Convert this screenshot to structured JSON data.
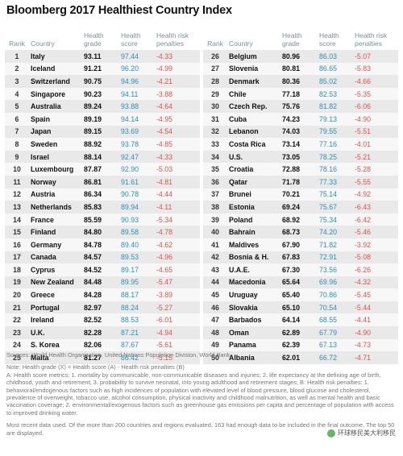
{
  "chart_data": {
    "type": "table",
    "title": "Bloomberg 2017 Healthiest Country Index",
    "columns": [
      "Rank",
      "Country",
      "Health grade",
      "Health score",
      "Health risk penalties"
    ],
    "rows": [
      {
        "rank": "1",
        "country": "Italy",
        "grade": "93.11",
        "score": "97.44",
        "penalty": "-4.33"
      },
      {
        "rank": "2",
        "country": "Iceland",
        "grade": "91.21",
        "score": "96.20",
        "penalty": "-4.99"
      },
      {
        "rank": "3",
        "country": "Switzerland",
        "grade": "90.75",
        "score": "94.96",
        "penalty": "-4.21"
      },
      {
        "rank": "4",
        "country": "Singapore",
        "grade": "90.23",
        "score": "94.11",
        "penalty": "-3.88"
      },
      {
        "rank": "5",
        "country": "Australia",
        "grade": "89.24",
        "score": "93.88",
        "penalty": "-4.64"
      },
      {
        "rank": "6",
        "country": "Spain",
        "grade": "89.19",
        "score": "94.14",
        "penalty": "-4.95"
      },
      {
        "rank": "7",
        "country": "Japan",
        "grade": "89.15",
        "score": "93.69",
        "penalty": "-4.54"
      },
      {
        "rank": "8",
        "country": "Sweden",
        "grade": "88.92",
        "score": "93.78",
        "penalty": "-4.85"
      },
      {
        "rank": "9",
        "country": "Israel",
        "grade": "88.14",
        "score": "92.47",
        "penalty": "-4.33"
      },
      {
        "rank": "10",
        "country": "Luxembourg",
        "grade": "87.87",
        "score": "92.90",
        "penalty": "-5.03"
      },
      {
        "rank": "11",
        "country": "Norway",
        "grade": "86.81",
        "score": "91.61",
        "penalty": "-4.81"
      },
      {
        "rank": "12",
        "country": "Austria",
        "grade": "86.34",
        "score": "90.78",
        "penalty": "-4.44"
      },
      {
        "rank": "13",
        "country": "Netherlands",
        "grade": "85.83",
        "score": "89.94",
        "penalty": "-4.11"
      },
      {
        "rank": "14",
        "country": "France",
        "grade": "85.59",
        "score": "90.93",
        "penalty": "-5.34"
      },
      {
        "rank": "15",
        "country": "Finland",
        "grade": "84.80",
        "score": "89.58",
        "penalty": "-4.78"
      },
      {
        "rank": "16",
        "country": "Germany",
        "grade": "84.78",
        "score": "89.40",
        "penalty": "-4.62"
      },
      {
        "rank": "17",
        "country": "Canada",
        "grade": "84.57",
        "score": "89.53",
        "penalty": "-4.96"
      },
      {
        "rank": "18",
        "country": "Cyprus",
        "grade": "84.52",
        "score": "89.17",
        "penalty": "-4.65"
      },
      {
        "rank": "19",
        "country": "New Zealand",
        "grade": "84.48",
        "score": "89.95",
        "penalty": "-5.47"
      },
      {
        "rank": "20",
        "country": "Greece",
        "grade": "84.28",
        "score": "88.17",
        "penalty": "-3.89"
      },
      {
        "rank": "21",
        "country": "Portugal",
        "grade": "82.97",
        "score": "88.24",
        "penalty": "-5.27"
      },
      {
        "rank": "22",
        "country": "Ireland",
        "grade": "82.52",
        "score": "88.53",
        "penalty": "-6.01"
      },
      {
        "rank": "23",
        "country": "U.K.",
        "grade": "82.28",
        "score": "87.21",
        "penalty": "-4.94"
      },
      {
        "rank": "24",
        "country": "S. Korea",
        "grade": "82.06",
        "score": "87.67",
        "penalty": "-5.61"
      },
      {
        "rank": "25",
        "country": "Malta",
        "grade": "81.27",
        "score": "86.42",
        "penalty": "-5.15"
      },
      {
        "rank": "26",
        "country": "Belgium",
        "grade": "80.96",
        "score": "86.03",
        "penalty": "-5.07"
      },
      {
        "rank": "27",
        "country": "Slovenia",
        "grade": "80.81",
        "score": "86.65",
        "penalty": "-5.83"
      },
      {
        "rank": "28",
        "country": "Denmark",
        "grade": "80.36",
        "score": "85.02",
        "penalty": "-4.66"
      },
      {
        "rank": "29",
        "country": "Chile",
        "grade": "77.18",
        "score": "82.53",
        "penalty": "-5.35"
      },
      {
        "rank": "30",
        "country": "Czech Rep.",
        "grade": "75.76",
        "score": "81.82",
        "penalty": "-6.06"
      },
      {
        "rank": "31",
        "country": "Cuba",
        "grade": "74.23",
        "score": "79.13",
        "penalty": "-4.90"
      },
      {
        "rank": "32",
        "country": "Lebanon",
        "grade": "74.03",
        "score": "79.55",
        "penalty": "-5.51"
      },
      {
        "rank": "33",
        "country": "Costa Rica",
        "grade": "73.14",
        "score": "77.16",
        "penalty": "-4.01"
      },
      {
        "rank": "34",
        "country": "U.S.",
        "grade": "73.05",
        "score": "78.25",
        "penalty": "-5.21"
      },
      {
        "rank": "35",
        "country": "Croatia",
        "grade": "72.88",
        "score": "78.16",
        "penalty": "-5.28"
      },
      {
        "rank": "36",
        "country": "Qatar",
        "grade": "71.78",
        "score": "77.33",
        "penalty": "-5.55"
      },
      {
        "rank": "37",
        "country": "Brunei",
        "grade": "70.21",
        "score": "75.14",
        "penalty": "-4.92"
      },
      {
        "rank": "38",
        "country": "Estonia",
        "grade": "69.24",
        "score": "75.67",
        "penalty": "-6.43"
      },
      {
        "rank": "39",
        "country": "Poland",
        "grade": "68.92",
        "score": "75.34",
        "penalty": "-6.42"
      },
      {
        "rank": "40",
        "country": "Bahrain",
        "grade": "68.73",
        "score": "74.20",
        "penalty": "-5.46"
      },
      {
        "rank": "41",
        "country": "Maldives",
        "grade": "67.90",
        "score": "71.82",
        "penalty": "-3.92"
      },
      {
        "rank": "42",
        "country": "Bosnia & H.",
        "grade": "67.83",
        "score": "72.91",
        "penalty": "-5.08"
      },
      {
        "rank": "43",
        "country": "U.A.E.",
        "grade": "67.30",
        "score": "73.56",
        "penalty": "-6.26"
      },
      {
        "rank": "44",
        "country": "Macedonia",
        "grade": "65.64",
        "score": "69.96",
        "penalty": "-4.32"
      },
      {
        "rank": "45",
        "country": "Uruguay",
        "grade": "65.40",
        "score": "70.86",
        "penalty": "-5.45"
      },
      {
        "rank": "46",
        "country": "Slovakia",
        "grade": "65.10",
        "score": "70.54",
        "penalty": "-5.44"
      },
      {
        "rank": "47",
        "country": "Barbados",
        "grade": "64.14",
        "score": "68.55",
        "penalty": "-4.41"
      },
      {
        "rank": "48",
        "country": "Oman",
        "grade": "62.89",
        "score": "67.79",
        "penalty": "-4.90"
      },
      {
        "rank": "49",
        "country": "Panama",
        "grade": "62.39",
        "score": "67.13",
        "penalty": "-4.73"
      },
      {
        "rank": "50",
        "country": "Albania",
        "grade": "62.01",
        "score": "66.72",
        "penalty": "-4.71"
      }
    ]
  },
  "footer": {
    "sources": "Sources: World Health Organization, United Nations Population Division, World Bank",
    "formula": "Note: Health grade (X) = Health score (A) - Health risk penalties (B)",
    "definition_a": "A: Health score metrics: 1. mortality by communicable, non-communicable diseases and injuries; 2. life expectancy at the defining age of birth, childhood, youth and retirement; 3. probability to survive neonatal, into young adulthood and retirement stages; B: Health risk penalties: 1. behavioral/endogenous factors such as high incidences of population with elevated level of blood pressure, blood glucose and cholesterol, prevalence of overweight, tobacco use, alcohol consumption, physical inactivity and childhood malnutrition, as well as mental health and basic vaccination coverage; 2. environmental/exogenous factors such as greenhouse gas emissions per capita and percentage of population with access to improved drinking water.",
    "recent": "Most recent data used. Of the more than 200 countries and regions evaluated, 163 had enough data to be included in the final outcome. The top 50 are displayed."
  },
  "watermark": {
    "text": "环球移民美大利移民",
    "icon": "wechat-icon"
  }
}
